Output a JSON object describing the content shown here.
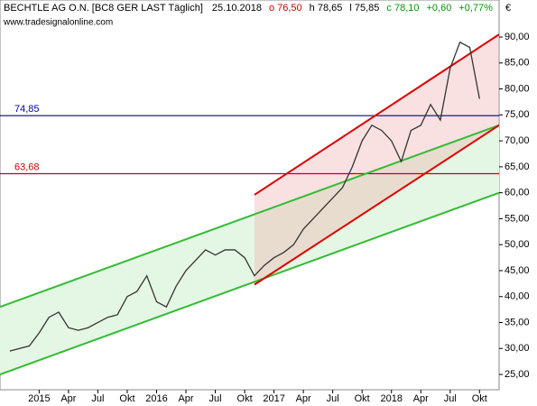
{
  "chart_data": {
    "type": "line",
    "title": "BECHTLE AG O.N. [BC8 GER LAST Täglich]",
    "header": [
      {
        "text": "25.10.2018",
        "color": "#000000"
      },
      {
        "text": "o 76,50",
        "color": "#cc0000"
      },
      {
        "text": "h 78,65",
        "color": "#000000"
      },
      {
        "text": "l 75,85",
        "color": "#000000"
      },
      {
        "text": "c 78,10",
        "color": "#009900"
      },
      {
        "text": "+0,60",
        "color": "#009900"
      },
      {
        "text": "+0,77%",
        "color": "#009900"
      }
    ],
    "subtitle": "www.tradesignalonline.com",
    "y_unit": "€",
    "x": [
      "2014-10",
      "2014-11",
      "2014-12",
      "2015-01",
      "2015-02",
      "2015-03",
      "2015-04",
      "2015-05",
      "2015-06",
      "2015-07",
      "2015-08",
      "2015-09",
      "2015-10",
      "2015-11",
      "2015-12",
      "2016-01",
      "2016-02",
      "2016-03",
      "2016-04",
      "2016-05",
      "2016-06",
      "2016-07",
      "2016-08",
      "2016-09",
      "2016-10",
      "2016-11",
      "2016-12",
      "2017-01",
      "2017-02",
      "2017-03",
      "2017-04",
      "2017-05",
      "2017-06",
      "2017-07",
      "2017-08",
      "2017-09",
      "2017-10",
      "2017-11",
      "2017-12",
      "2018-01",
      "2018-02",
      "2018-03",
      "2018-04",
      "2018-05",
      "2018-06",
      "2018-07",
      "2018-08",
      "2018-09",
      "2018-10"
    ],
    "series": [
      {
        "name": "BECHTLE AG O.N.",
        "color": "#333333",
        "values": [
          29.5,
          30,
          30.5,
          33,
          36,
          37,
          34,
          33.5,
          34,
          35,
          36,
          36.5,
          40,
          41,
          44,
          39,
          38,
          42,
          45,
          47,
          49,
          48,
          49,
          49,
          47.5,
          44,
          46,
          47.5,
          48.5,
          50,
          53,
          55,
          57,
          59,
          61,
          65,
          70,
          73,
          72,
          70,
          66,
          72,
          73,
          77,
          74,
          84,
          89,
          88,
          78.1
        ]
      }
    ],
    "hlines": [
      {
        "value": 74.85,
        "label": "74,85",
        "color": "#0000aa"
      },
      {
        "value": 63.68,
        "label": "63,68",
        "color": "#cc0000"
      }
    ],
    "trendlines": [
      {
        "x": [
          "2014-09",
          "2018-12"
        ],
        "values": [
          25,
          60
        ],
        "color": "#33bb33"
      },
      {
        "x": [
          "2014-09",
          "2018-12"
        ],
        "values": [
          38,
          73
        ],
        "color": "#33bb33"
      },
      {
        "x": [
          "2016-11",
          "2018-12"
        ],
        "values": [
          42.3,
          73
        ],
        "color": "#dd0000"
      },
      {
        "x": [
          "2016-11",
          "2018-12"
        ],
        "values": [
          59.6,
          90.5
        ],
        "color": "#dd0000"
      }
    ],
    "xlim": [
      "2014-09",
      "2018-12"
    ],
    "xticks": [
      {
        "value": "2015-01",
        "label": "2015"
      },
      {
        "value": "2015-04",
        "label": "Apr"
      },
      {
        "value": "2015-07",
        "label": "Jul"
      },
      {
        "value": "2015-10",
        "label": "Okt"
      },
      {
        "value": "2016-01",
        "label": "2016"
      },
      {
        "value": "2016-04",
        "label": "Apr"
      },
      {
        "value": "2016-07",
        "label": "Jul"
      },
      {
        "value": "2016-10",
        "label": "Okt"
      },
      {
        "value": "2017-01",
        "label": "2017"
      },
      {
        "value": "2017-04",
        "label": "Apr"
      },
      {
        "value": "2017-07",
        "label": "Jul"
      },
      {
        "value": "2017-10",
        "label": "Okt"
      },
      {
        "value": "2018-01",
        "label": "2018"
      },
      {
        "value": "2018-04",
        "label": "Apr"
      },
      {
        "value": "2018-07",
        "label": "Jul"
      },
      {
        "value": "2018-10",
        "label": "Okt"
      }
    ],
    "ylim": [
      22.05,
      97.13
    ],
    "yticks": [
      {
        "value": 25,
        "label": "25,00"
      },
      {
        "value": 30,
        "label": "30,00"
      },
      {
        "value": 35,
        "label": "35,00"
      },
      {
        "value": 40,
        "label": "40,00"
      },
      {
        "value": 45,
        "label": "45,00"
      },
      {
        "value": 50,
        "label": "50,00"
      },
      {
        "value": 55,
        "label": "55,00"
      },
      {
        "value": 60,
        "label": "60,00"
      },
      {
        "value": 65,
        "label": "65,00"
      },
      {
        "value": 70,
        "label": "70,00"
      },
      {
        "value": 75,
        "label": "75,00"
      },
      {
        "value": 80,
        "label": "80,00"
      },
      {
        "value": 85,
        "label": "85,00"
      },
      {
        "value": 90,
        "label": "90,00"
      }
    ]
  }
}
